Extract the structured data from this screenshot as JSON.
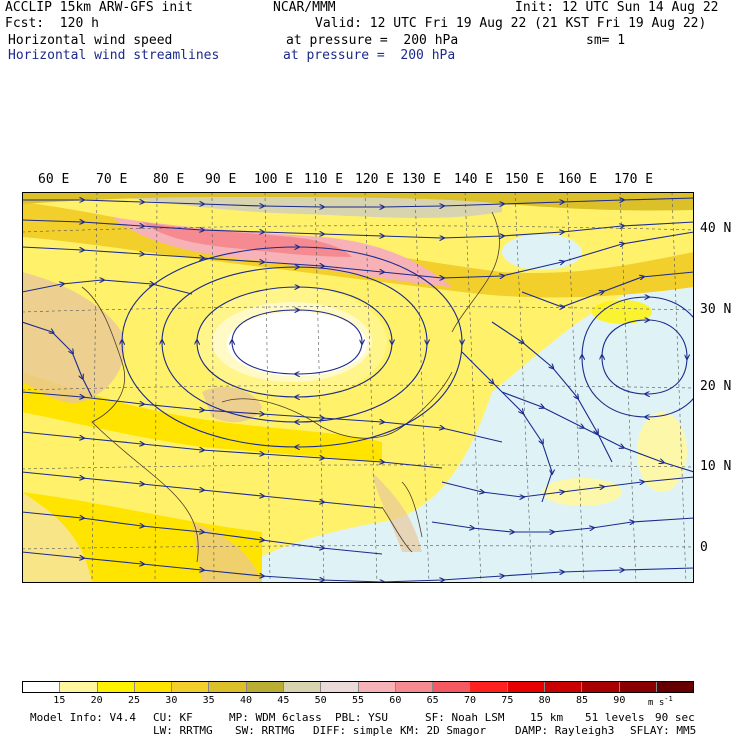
{
  "header": {
    "model": "ACCLIP 15km ARW-GFS init",
    "center": "NCAR/MMM",
    "init": "Init: 12 UTC Sun 14 Aug 22",
    "fcst": "Fcst:  120 h",
    "valid": "Valid: 12 UTC Fri 19 Aug 22 (21 KST Fri 19 Aug 22)",
    "field1": "Horizontal wind speed",
    "field1_level": "at pressure =  200 hPa",
    "smoothing": "sm= 1",
    "field2": "Horizontal wind streamlines",
    "field2_level": "at pressure =  200 hPa"
  },
  "map": {
    "lon_labels": [
      "60 E",
      "70 E",
      "80 E",
      "90 E",
      "100 E",
      "110 E",
      "120 E",
      "130 E",
      "140 E",
      "150 E",
      "160 E",
      "170 E"
    ],
    "lat_labels": [
      "40 N",
      "30 N",
      "20 N",
      "10 N",
      "0"
    ],
    "streamline_color": "#1b2a8c"
  },
  "colorbar": {
    "ticks": [
      "15",
      "20",
      "25",
      "30",
      "35",
      "40",
      "45",
      "50",
      "55",
      "60",
      "65",
      "70",
      "75",
      "80",
      "85",
      "90"
    ],
    "units": "m s",
    "units_exp": "-1",
    "colors": [
      "#ffffff",
      "#fff7a0",
      "#fff200",
      "#ffe400",
      "#f2cf2a",
      "#dcc02a",
      "#b9ad33",
      "#d8d4b0",
      "#eadbd8",
      "#f6b2b6",
      "#f58b91",
      "#f55a63",
      "#ff2020",
      "#e60000",
      "#c80000",
      "#a80000",
      "#880000",
      "#660000"
    ]
  },
  "footer": {
    "line1": [
      "Model Info: V4.4",
      "CU: KF",
      "MP: WDM 6class",
      "PBL: YSU",
      "SF: Noah LSM",
      "15 km",
      "51 levels",
      "90 sec"
    ],
    "line2": [
      "LW: RRTMG",
      "SW: RRTMG",
      "DIFF: simple",
      "KM: 2D Smagor",
      "DAMP: Rayleigh3",
      "SFLAY: MM5"
    ]
  }
}
